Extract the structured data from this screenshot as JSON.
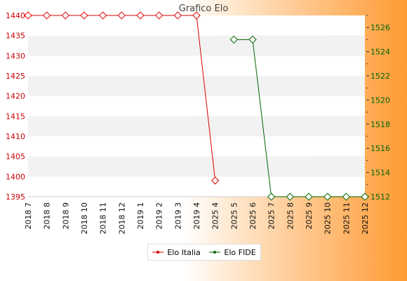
{
  "chart_data": {
    "type": "line",
    "title": "Grafico Elo",
    "categories": [
      "2018 7",
      "2018 8",
      "2018 9",
      "2018 10",
      "2018 11",
      "2018 12",
      "2019 1",
      "2019 2",
      "2019 3",
      "2019 4",
      "2025 4",
      "2025 5",
      "2025 6",
      "2025 7",
      "2025 8",
      "2025 9",
      "2025 10",
      "2025 11",
      "2025 12"
    ],
    "y_left": {
      "range": [
        1395,
        1440
      ],
      "ticks": [
        1395,
        1400,
        1405,
        1410,
        1415,
        1420,
        1425,
        1430,
        1435,
        1440
      ]
    },
    "y_right": {
      "range": [
        1512,
        1527
      ],
      "ticks": [
        1512,
        1514,
        1516,
        1518,
        1520,
        1522,
        1524,
        1526
      ]
    },
    "series": [
      {
        "name": "Elo Italia",
        "axis": "left",
        "color": "#dd0000",
        "values": [
          1440,
          1440,
          1440,
          1440,
          1440,
          1440,
          1440,
          1440,
          1440,
          1440,
          1399,
          null,
          null,
          null,
          null,
          null,
          null,
          null,
          null
        ]
      },
      {
        "name": "Elo FIDE",
        "axis": "right",
        "color": "#006600",
        "values": [
          null,
          null,
          null,
          null,
          null,
          null,
          null,
          null,
          null,
          null,
          null,
          1525,
          1525,
          1512,
          1512,
          1512,
          1512,
          1512,
          1512
        ]
      }
    ],
    "grid": "horizontal bands",
    "legend": "bottom-center"
  }
}
